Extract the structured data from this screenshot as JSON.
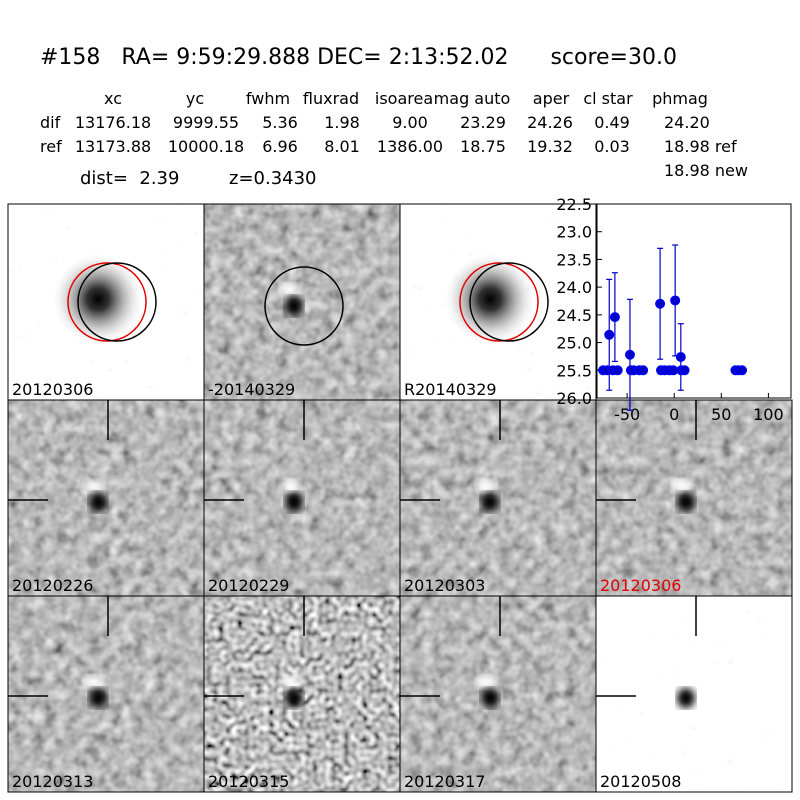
{
  "header": {
    "title": "#158   RA= 9:59:29.888 DEC= 2:13:52.02      score=30.0",
    "dist": "dist=  2.39",
    "z": "z=0.3430"
  },
  "table": {
    "columns": [
      "xc",
      "yc",
      "fwhm",
      "fluxrad",
      "isoarea",
      "mag auto",
      "aper",
      "cl star",
      "phmag"
    ],
    "rows": [
      [
        "dif",
        "13176.18",
        "9999.55",
        "5.36",
        "1.98",
        "9.00",
        "23.29",
        "24.26",
        "0.49",
        "24.20"
      ],
      [
        "ref",
        "13173.88",
        "10000.18",
        "6.96",
        "8.01",
        "1386.00",
        "18.75",
        "19.32",
        "0.03",
        "18.98 ref"
      ]
    ],
    "note": "18.98 new"
  },
  "stamps": [
    "20120306",
    "-20140329",
    "R20140329",
    "20120226",
    "20120229",
    "20120303",
    "20120306",
    "20120313",
    "20120315",
    "20120317",
    "20120508"
  ],
  "chart_data": {
    "type": "errorbar",
    "xlim": [
      -82,
      124
    ],
    "ylim": [
      26.0,
      22.5
    ],
    "xticks": [
      -50,
      0,
      50,
      100
    ],
    "yticks": [
      22.5,
      {
        "value": 23.0,
        "label": "23.0"
      },
      23.5,
      {
        "value": 24.0,
        "label": "24.0"
      },
      24.5,
      {
        "value": 25.0,
        "label": "25.0"
      },
      25.5,
      {
        "value": 26.0,
        "label": "26.0"
      }
    ],
    "series": [
      {
        "color": "#0000cc",
        "x": [
          -75.5,
          -71,
          -69,
          -65,
          -63,
          -60,
          -47,
          -46,
          -43,
          -37,
          -33,
          -15,
          -14,
          -10,
          -5,
          -1,
          1,
          7,
          7.5,
          11,
          65,
          68,
          72
        ],
        "values": [
          25.5,
          25.5,
          24.86,
          25.5,
          24.54,
          25.5,
          25.22,
          25.5,
          25.5,
          25.5,
          25.5,
          24.3,
          25.5,
          25.5,
          25.5,
          25.5,
          24.24,
          25.26,
          25.5,
          25.5,
          25.5,
          25.5,
          25.5
        ],
        "errors": [
          0.05,
          0.05,
          1.0,
          0.05,
          0.8,
          0.05,
          1.0,
          0.05,
          0.05,
          0.05,
          0.05,
          1.0,
          0.05,
          0.05,
          0.05,
          0.05,
          1.0,
          0.6,
          0.05,
          0.05,
          0.05,
          0.05,
          0.05
        ]
      }
    ]
  }
}
